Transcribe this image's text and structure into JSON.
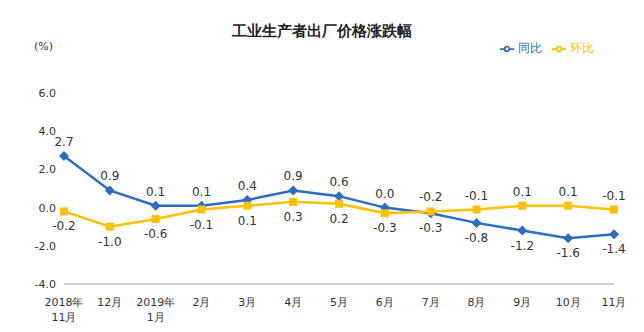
{
  "chart_data": {
    "type": "line",
    "title": "工业生产者出厂价格涨跌幅",
    "y_label": "(%)",
    "categories": [
      "2018年11月",
      "12月",
      "2019年1月",
      "2月",
      "3月",
      "4月",
      "5月",
      "6月",
      "7月",
      "8月",
      "9月",
      "10月",
      "11月"
    ],
    "series": [
      {
        "name": "同比",
        "color": "#2b6cc4",
        "marker": "diamond",
        "values": [
          2.7,
          0.9,
          0.1,
          0.1,
          0.4,
          0.9,
          0.6,
          0.0,
          -0.3,
          -0.8,
          -1.2,
          -1.6,
          -1.4
        ],
        "value_labels": [
          "2.7",
          "0.9",
          "0.1",
          "0.1",
          "0.4",
          "0.9",
          "0.6",
          "0.0",
          "-0.3",
          "-0.8",
          "-1.2",
          "-1.6",
          "-1.4"
        ]
      },
      {
        "name": "环比",
        "color": "#ffc000",
        "marker": "square",
        "values": [
          -0.2,
          -1.0,
          -0.6,
          -0.1,
          0.1,
          0.3,
          0.2,
          -0.3,
          -0.2,
          -0.1,
          0.1,
          0.1,
          -0.1
        ],
        "value_labels": [
          "-0.2",
          "-1.0",
          "-0.6",
          "-0.1",
          "0.1",
          "0.3",
          "0.2",
          "-0.3",
          "-0.2",
          "-0.1",
          "0.1",
          "0.1",
          "-0.1"
        ]
      }
    ],
    "ylim": [
      -4,
      6
    ],
    "yticks": [
      {
        "value": -4,
        "label": "-4.0"
      },
      {
        "value": -2,
        "label": "-2.0"
      },
      {
        "value": 0,
        "label": "0.0"
      },
      {
        "value": 2,
        "label": "2.0"
      },
      {
        "value": 4,
        "label": "4.0"
      },
      {
        "value": 6,
        "label": "6.0"
      }
    ],
    "grid": false,
    "legend": "top-right",
    "data_labels": true
  }
}
